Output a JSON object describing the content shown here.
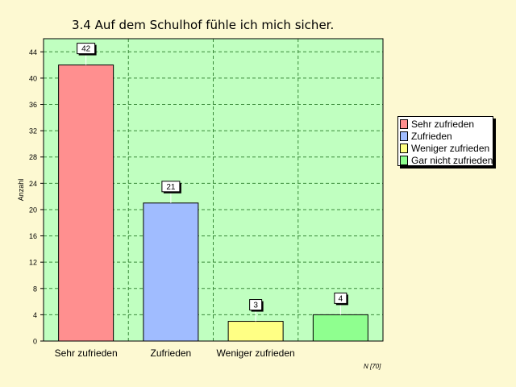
{
  "title": "3.4  Auf dem Schulhof fühle ich mich sicher.",
  "note": "N [70]",
  "chart_data": {
    "type": "bar",
    "title": "3.4  Auf dem Schulhof fühle ich mich sicher.",
    "xlabel": "",
    "ylabel": "Anzahl",
    "categories": [
      "Sehr zufrieden",
      "Zufrieden",
      "Weniger zufrieden",
      "Gar nicht zufrieden"
    ],
    "tick_labels": [
      "Sehr zufrieden",
      "Zufrieden",
      "Weniger zufrieden",
      ""
    ],
    "values": [
      42,
      21,
      3,
      4
    ],
    "data_labels": [
      "42",
      "21",
      "3",
      "4"
    ],
    "colors": [
      "#ff8f8f",
      "#a0bcff",
      "#ffff84",
      "#8fff8f"
    ],
    "plot_background": "#c0ffc0",
    "ylim": [
      0,
      46
    ],
    "yticks": [
      0,
      4,
      8,
      12,
      16,
      20,
      24,
      28,
      32,
      36,
      40,
      44
    ],
    "grid": true,
    "legend_position": "right"
  },
  "legend": {
    "items": [
      {
        "label": "Sehr zufrieden",
        "color": "#ff8f8f"
      },
      {
        "label": "Zufrieden",
        "color": "#a0bcff"
      },
      {
        "label": "Weniger zufrieden",
        "color": "#ffff84"
      },
      {
        "label": "Gar nicht zufrieden",
        "color": "#8fff8f"
      }
    ]
  }
}
